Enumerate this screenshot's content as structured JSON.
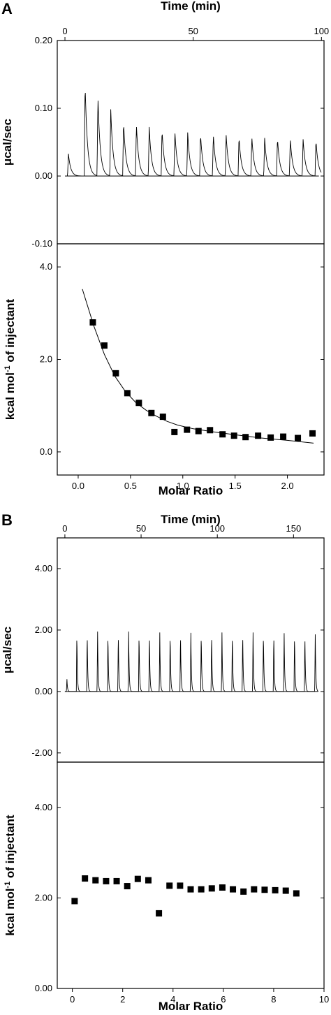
{
  "figure": {
    "panels": [
      {
        "letter": "A"
      },
      {
        "letter": "B"
      }
    ]
  },
  "chart_data": [
    {
      "panel": "A",
      "role": "raw-heat-trace",
      "type": "line",
      "title": "",
      "xlabel": "Time (min)",
      "ylabel": "μcal/sec",
      "xlim": [
        -3,
        101
      ],
      "ylim": [
        -0.1,
        0.2
      ],
      "xticks": [
        0,
        50,
        100
      ],
      "xtick_labels": [
        "0",
        "50",
        "100"
      ],
      "yticks": [
        -0.1,
        0.0,
        0.1,
        0.2
      ],
      "ytick_labels": [
        "-0.10",
        "0.00",
        "0.10",
        "0.20"
      ],
      "x_axis_position": "top",
      "baseline": 0.0,
      "injection_times": [
        1,
        7.5,
        12.5,
        17.5,
        22.5,
        27.5,
        32.5,
        37.5,
        42.5,
        47.5,
        52.5,
        57.5,
        62.5,
        67.5,
        72.5,
        77.5,
        82.5,
        87.5,
        92.5,
        97.5
      ],
      "peak_heights": [
        0.033,
        0.137,
        0.117,
        0.098,
        0.08,
        0.076,
        0.072,
        0.068,
        0.066,
        0.064,
        0.062,
        0.061,
        0.06,
        0.058,
        0.058,
        0.056,
        0.056,
        0.055,
        0.054,
        0.053
      ],
      "grid": false,
      "legend": "none"
    },
    {
      "panel": "A",
      "role": "integrated-heats",
      "type": "scatter",
      "title": "",
      "xlabel": "Molar Ratio",
      "ylabel": "kcal mol-1 of injectant",
      "xlim": [
        -0.2,
        2.35
      ],
      "ylim": [
        -0.5,
        4.5
      ],
      "xticks": [
        0.0,
        0.5,
        1.0,
        1.5,
        2.0
      ],
      "xtick_labels": [
        "0.0",
        "0.5",
        "1.0",
        "1.5",
        "2.0"
      ],
      "yticks": [
        0.0,
        2.0,
        4.0
      ],
      "ytick_labels": [
        "0.0",
        "2.0",
        "4.0"
      ],
      "series": [
        {
          "marker": "square",
          "x": [
            0.14,
            0.25,
            0.36,
            0.47,
            0.58,
            0.7,
            0.81,
            0.92,
            1.04,
            1.15,
            1.26,
            1.38,
            1.49,
            1.6,
            1.72,
            1.84,
            1.96,
            2.1,
            2.24
          ],
          "y": [
            2.8,
            2.3,
            1.7,
            1.27,
            1.06,
            0.84,
            0.76,
            0.43,
            0.48,
            0.45,
            0.47,
            0.38,
            0.35,
            0.32,
            0.35,
            0.31,
            0.33,
            0.3,
            0.4
          ]
        }
      ],
      "fit_curve": {
        "x": [
          0.04,
          0.15,
          0.25,
          0.35,
          0.45,
          0.55,
          0.65,
          0.75,
          0.85,
          0.95,
          1.1,
          1.3,
          1.5,
          1.75,
          2.0,
          2.25
        ],
        "y": [
          3.52,
          2.72,
          2.11,
          1.64,
          1.31,
          1.07,
          0.9,
          0.77,
          0.66,
          0.58,
          0.5,
          0.43,
          0.37,
          0.3,
          0.25,
          0.19
        ]
      },
      "grid": false,
      "legend": "none"
    },
    {
      "panel": "B",
      "role": "raw-heat-trace",
      "type": "line",
      "title": "",
      "xlabel": "Time (min)",
      "ylabel": "μcal/sec",
      "xlim": [
        -5,
        170
      ],
      "ylim": [
        -2.3,
        5.0
      ],
      "xticks": [
        0,
        50,
        100,
        150
      ],
      "xtick_labels": [
        "0",
        "50",
        "100",
        "150"
      ],
      "yticks": [
        -2.0,
        0.0,
        2.0,
        4.0
      ],
      "ytick_labels": [
        "-2.00",
        "0.00",
        "2.00",
        "4.00"
      ],
      "x_axis_position": "top",
      "baseline": 0.0,
      "injection_times": [
        1,
        7.5,
        14.3,
        21.1,
        27.9,
        34.7,
        41.5,
        48.3,
        55.1,
        61.9,
        68.7,
        75.5,
        82.3,
        89.1,
        95.9,
        102.7,
        109.5,
        116.3,
        123.1,
        129.9,
        136.7,
        143.5,
        150.3,
        157.1,
        163.9
      ],
      "peak_heights": [
        0.4,
        1.93,
        1.92,
        1.95,
        1.92,
        1.93,
        1.95,
        1.93,
        1.91,
        1.92,
        1.92,
        1.92,
        1.91,
        1.92,
        1.93,
        1.92,
        1.92,
        1.93,
        1.92,
        1.92,
        1.91,
        1.9,
        1.9,
        1.88,
        1.86
      ],
      "grid": false,
      "legend": "none"
    },
    {
      "panel": "B",
      "role": "integrated-heats",
      "type": "scatter",
      "title": "",
      "xlabel": "Molar Ratio",
      "ylabel": "kcal mol-1 of injectant",
      "xlim": [
        -0.6,
        10.0
      ],
      "ylim": [
        0.0,
        5.0
      ],
      "xticks": [
        0,
        2,
        4,
        6,
        8,
        10
      ],
      "xtick_labels": [
        "0",
        "2",
        "4",
        "6",
        "8",
        "10"
      ],
      "yticks": [
        0.0,
        2.0,
        4.0
      ],
      "ytick_labels": [
        "0.00",
        "2.00",
        "4.00"
      ],
      "series": [
        {
          "marker": "square",
          "x": [
            0.09,
            0.5,
            0.92,
            1.34,
            1.76,
            2.18,
            2.6,
            3.02,
            3.44,
            3.86,
            4.28,
            4.7,
            5.12,
            5.54,
            5.96,
            6.38,
            6.8,
            7.22,
            7.64,
            8.06,
            8.48,
            8.9
          ],
          "y": [
            1.93,
            2.43,
            2.39,
            2.37,
            2.37,
            2.26,
            2.42,
            2.39,
            1.66,
            2.27,
            2.27,
            2.19,
            2.19,
            2.21,
            2.23,
            2.19,
            2.14,
            2.19,
            2.18,
            2.17,
            2.16,
            2.1
          ]
        }
      ],
      "grid": false,
      "legend": "none"
    }
  ]
}
